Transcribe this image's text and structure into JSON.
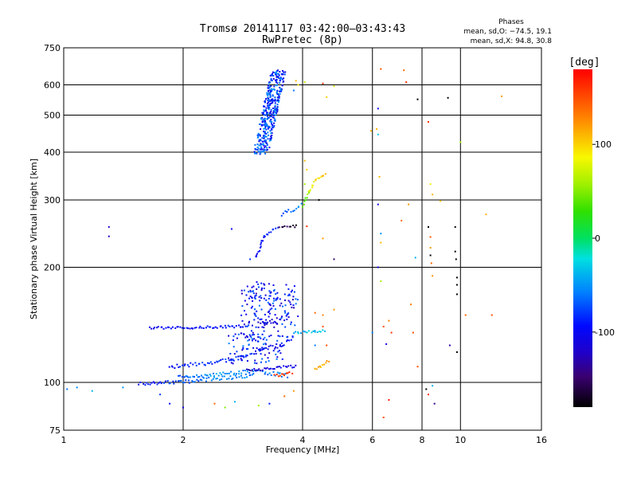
{
  "chart_data": {
    "type": "scatter",
    "title": "Tromsø 20141117 03:42:00–03:43:43",
    "subtitle": "RwPretec (8p)",
    "xlabel": "Frequency [MHz]",
    "ylabel": "Stationary phase Virtual Height [km]",
    "x_scale": "log",
    "y_scale": "log",
    "xlim": [
      1,
      16
    ],
    "ylim": [
      75,
      750
    ],
    "x_ticks": [
      1,
      2,
      4,
      6,
      8,
      10,
      16
    ],
    "x_tick_labels": [
      "1",
      "2",
      "4",
      "6",
      "8",
      "10",
      "16"
    ],
    "y_ticks": [
      75,
      100,
      200,
      300,
      400,
      500,
      600,
      750
    ],
    "y_tick_labels": [
      "75",
      "100",
      "200",
      "300",
      "400",
      "500",
      "600",
      "750"
    ],
    "grid": true,
    "stats": {
      "heading": "Phases",
      "line_o": "mean, sd,O: −74.5, 19.1",
      "line_x": "mean, sd,X:  94.8, 30.8"
    },
    "colorbar": {
      "label": "[deg]",
      "range": [
        -180,
        180
      ],
      "ticks": [
        100,
        0,
        -100
      ],
      "tick_labels": [
        "100",
        "0",
        "-100"
      ]
    },
    "traces": [
      {
        "x": [
          1.55,
          1.7,
          1.9,
          2.1,
          2.35,
          2.6,
          2.85,
          3.05
        ],
        "y": [
          99,
          99.5,
          100,
          101,
          102,
          103,
          104,
          105
        ],
        "phase": [
          -100,
          -90,
          -80,
          -70,
          -60,
          -50,
          -60,
          -70
        ],
        "spread": 2.5
      },
      {
        "x": [
          1.95,
          2.2,
          2.45,
          2.7,
          2.95,
          3.2,
          3.45,
          3.7
        ],
        "y": [
          103,
          104,
          105,
          106,
          107,
          106,
          105,
          104
        ],
        "phase": [
          -70,
          -60,
          -50,
          -55,
          -60,
          -65,
          -60,
          -55
        ],
        "spread": 2.5
      },
      {
        "x": [
          1.85,
          2.05,
          2.3,
          2.55,
          2.8,
          3.0
        ],
        "y": [
          110,
          111,
          112,
          114,
          116,
          118
        ],
        "phase": [
          -95,
          -90,
          -85,
          -80,
          -85,
          -90
        ],
        "spread": 2.5
      },
      {
        "x": [
          1.65,
          1.85,
          2.1,
          2.4,
          2.7,
          2.95
        ],
        "y": [
          139,
          139,
          139,
          139.5,
          140,
          141
        ],
        "phase": [
          -105,
          -100,
          -95,
          -95,
          -90,
          -85
        ],
        "spread": 1.5
      },
      {
        "x": [
          2.9,
          3.1,
          3.3,
          3.5,
          3.7,
          3.9
        ],
        "y": [
          108,
          108,
          109,
          109.5,
          110,
          110
        ],
        "phase": [
          -125,
          -120,
          -115,
          -110,
          -105,
          -100
        ],
        "spread": 1.5
      },
      {
        "x": [
          3.0,
          3.2,
          3.4,
          3.6,
          3.8
        ],
        "y": [
          121,
          122,
          124,
          127,
          130
        ],
        "phase": [
          -110,
          -105,
          -100,
          -95,
          -90
        ],
        "spread": 4
      },
      {
        "x": [
          3.1,
          3.3,
          3.5,
          3.7
        ],
        "y": [
          140,
          143,
          145,
          148
        ],
        "phase": [
          -120,
          -115,
          -110,
          -105
        ],
        "spread": 5
      },
      {
        "x": [
          3.8,
          4.0,
          4.2,
          4.4,
          4.6
        ],
        "y": [
          135,
          135.5,
          136,
          136,
          136.5
        ],
        "phase": [
          -45,
          -40,
          -35,
          -30,
          -25
        ],
        "spread": 1.5
      },
      {
        "x": [
          4.3,
          4.5,
          4.7
        ],
        "y": [
          108,
          111,
          114
        ],
        "phase": [
          110,
          115,
          120
        ],
        "spread": 2
      },
      {
        "x": [
          3.4,
          3.6,
          3.8
        ],
        "y": [
          104,
          105,
          106
        ],
        "phase": [
          150,
          155,
          160
        ],
        "spread": 1.5
      },
      {
        "x": [
          3.05,
          3.2,
          3.35,
          3.5
        ],
        "y": [
          212,
          240,
          250,
          253
        ],
        "phase": [
          -100,
          -95,
          -90,
          -90
        ],
        "spread": 1.5
      },
      {
        "x": [
          3.5,
          3.7,
          3.9
        ],
        "y": [
          256,
          256,
          256
        ],
        "phase": [
          -160,
          -165,
          -170
        ],
        "spread": 1.5
      },
      {
        "x": [
          3.55,
          3.7,
          3.85,
          4.0
        ],
        "y": [
          275,
          280,
          285,
          292
        ],
        "phase": [
          -80,
          -70,
          -60,
          -50
        ],
        "spread": 2.5
      },
      {
        "x": [
          4.0,
          4.1,
          4.2,
          4.3,
          4.45,
          4.6
        ],
        "y": [
          290,
          305,
          320,
          335,
          345,
          350
        ],
        "phase": [
          30,
          50,
          70,
          90,
          100,
          105
        ],
        "spread": 2
      }
    ],
    "clusters": [
      {
        "x_range": [
          3.05,
          3.7
        ],
        "y_range": [
          395,
          655
        ],
        "phase_range": [
          -115,
          -45
        ],
        "count": 380,
        "tilt": 0.55,
        "style": "f2-cusp"
      },
      {
        "x_range": [
          2.8,
          3.9
        ],
        "y_range": [
          130,
          180
        ],
        "phase_range": [
          -130,
          -60
        ],
        "count": 130
      },
      {
        "x_range": [
          2.6,
          3.6
        ],
        "y_range": [
          112,
          135
        ],
        "phase_range": [
          -125,
          -55
        ],
        "count": 90
      },
      {
        "x_range": [
          2.9,
          3.9
        ],
        "y_range": [
          160,
          185
        ],
        "phase_range": [
          -110,
          -70
        ],
        "count": 40
      }
    ],
    "scattered_points": [
      {
        "x": 1.08,
        "y": 97,
        "phase": -55
      },
      {
        "x": 1.02,
        "y": 96,
        "phase": -60
      },
      {
        "x": 1.18,
        "y": 95,
        "phase": -40
      },
      {
        "x": 1.3,
        "y": 255,
        "phase": -115
      },
      {
        "x": 1.3,
        "y": 241,
        "phase": -120
      },
      {
        "x": 1.41,
        "y": 97,
        "phase": -50
      },
      {
        "x": 1.75,
        "y": 93,
        "phase": -80
      },
      {
        "x": 1.85,
        "y": 88,
        "phase": -95
      },
      {
        "x": 2.0,
        "y": 86,
        "phase": -110
      },
      {
        "x": 2.4,
        "y": 88,
        "phase": 140
      },
      {
        "x": 2.55,
        "y": 86,
        "phase": 50
      },
      {
        "x": 2.7,
        "y": 89,
        "phase": -40
      },
      {
        "x": 3.1,
        "y": 87,
        "phase": 60
      },
      {
        "x": 3.3,
        "y": 88,
        "phase": -90
      },
      {
        "x": 3.6,
        "y": 92,
        "phase": 140
      },
      {
        "x": 3.8,
        "y": 95,
        "phase": 120
      },
      {
        "x": 2.65,
        "y": 252,
        "phase": -100
      },
      {
        "x": 2.95,
        "y": 210,
        "phase": -80
      },
      {
        "x": 3.85,
        "y": 615,
        "phase": 110
      },
      {
        "x": 3.9,
        "y": 600,
        "phase": 90
      },
      {
        "x": 3.8,
        "y": 580,
        "phase": -60
      },
      {
        "x": 4.05,
        "y": 610,
        "phase": 70
      },
      {
        "x": 4.5,
        "y": 605,
        "phase": 160
      },
      {
        "x": 4.8,
        "y": 595,
        "phase": 80
      },
      {
        "x": 4.6,
        "y": 557,
        "phase": 100
      },
      {
        "x": 4.05,
        "y": 380,
        "phase": 110
      },
      {
        "x": 4.1,
        "y": 360,
        "phase": 100
      },
      {
        "x": 4.05,
        "y": 330,
        "phase": 60
      },
      {
        "x": 4.4,
        "y": 300,
        "phase": -180
      },
      {
        "x": 4.5,
        "y": 238,
        "phase": 120
      },
      {
        "x": 4.8,
        "y": 210,
        "phase": -150
      },
      {
        "x": 4.1,
        "y": 256,
        "phase": 160
      },
      {
        "x": 4.3,
        "y": 152,
        "phase": 140
      },
      {
        "x": 4.5,
        "y": 150,
        "phase": 130
      },
      {
        "x": 4.5,
        "y": 140,
        "phase": 150
      },
      {
        "x": 4.8,
        "y": 155,
        "phase": 120
      },
      {
        "x": 4.6,
        "y": 125,
        "phase": 150
      },
      {
        "x": 4.3,
        "y": 125,
        "phase": -60
      },
      {
        "x": 5.95,
        "y": 455,
        "phase": 110
      },
      {
        "x": 6.15,
        "y": 460,
        "phase": 110
      },
      {
        "x": 6.2,
        "y": 445,
        "phase": -30
      },
      {
        "x": 6.3,
        "y": 660,
        "phase": 150
      },
      {
        "x": 6.2,
        "y": 520,
        "phase": -100
      },
      {
        "x": 6.25,
        "y": 345,
        "phase": 110
      },
      {
        "x": 6.0,
        "y": 135,
        "phase": -60
      },
      {
        "x": 6.2,
        "y": 292,
        "phase": -110
      },
      {
        "x": 6.3,
        "y": 245,
        "phase": -50
      },
      {
        "x": 6.3,
        "y": 232,
        "phase": 110
      },
      {
        "x": 6.2,
        "y": 200,
        "phase": -110
      },
      {
        "x": 6.3,
        "y": 184,
        "phase": 60
      },
      {
        "x": 6.4,
        "y": 140,
        "phase": 150
      },
      {
        "x": 6.5,
        "y": 126,
        "phase": -110
      },
      {
        "x": 6.6,
        "y": 145,
        "phase": 130
      },
      {
        "x": 6.4,
        "y": 81,
        "phase": 150
      },
      {
        "x": 6.7,
        "y": 135,
        "phase": 160
      },
      {
        "x": 6.6,
        "y": 90,
        "phase": 170
      },
      {
        "x": 7.2,
        "y": 655,
        "phase": 140
      },
      {
        "x": 7.3,
        "y": 610,
        "phase": 160
      },
      {
        "x": 7.1,
        "y": 265,
        "phase": 140
      },
      {
        "x": 7.4,
        "y": 292,
        "phase": 120
      },
      {
        "x": 7.7,
        "y": 212,
        "phase": -40
      },
      {
        "x": 7.8,
        "y": 550,
        "phase": -180
      },
      {
        "x": 7.5,
        "y": 160,
        "phase": 130
      },
      {
        "x": 7.6,
        "y": 135,
        "phase": 150
      },
      {
        "x": 7.8,
        "y": 110,
        "phase": 150
      },
      {
        "x": 8.3,
        "y": 480,
        "phase": 160
      },
      {
        "x": 8.4,
        "y": 330,
        "phase": 80
      },
      {
        "x": 8.5,
        "y": 310,
        "phase": 110
      },
      {
        "x": 8.3,
        "y": 255,
        "phase": -180
      },
      {
        "x": 8.4,
        "y": 240,
        "phase": 150
      },
      {
        "x": 8.4,
        "y": 225,
        "phase": 120
      },
      {
        "x": 8.4,
        "y": 215,
        "phase": -180
      },
      {
        "x": 8.45,
        "y": 205,
        "phase": 140
      },
      {
        "x": 8.5,
        "y": 190,
        "phase": 120
      },
      {
        "x": 8.2,
        "y": 96,
        "phase": -180
      },
      {
        "x": 8.5,
        "y": 98,
        "phase": -40
      },
      {
        "x": 8.3,
        "y": 93,
        "phase": 160
      },
      {
        "x": 8.6,
        "y": 88,
        "phase": -140
      },
      {
        "x": 8.9,
        "y": 298,
        "phase": 100
      },
      {
        "x": 9.3,
        "y": 555,
        "phase": -180
      },
      {
        "x": 9.4,
        "y": 125,
        "phase": -130
      },
      {
        "x": 9.8,
        "y": 120,
        "phase": -180
      },
      {
        "x": 9.7,
        "y": 255,
        "phase": -180
      },
      {
        "x": 9.7,
        "y": 220,
        "phase": -180
      },
      {
        "x": 9.75,
        "y": 210,
        "phase": -180
      },
      {
        "x": 9.8,
        "y": 188,
        "phase": -180
      },
      {
        "x": 9.8,
        "y": 180,
        "phase": -180
      },
      {
        "x": 9.8,
        "y": 170,
        "phase": -180
      },
      {
        "x": 10.0,
        "y": 425,
        "phase": 60
      },
      {
        "x": 10.3,
        "y": 150,
        "phase": 140
      },
      {
        "x": 11.6,
        "y": 275,
        "phase": 110
      },
      {
        "x": 12.7,
        "y": 560,
        "phase": 120
      },
      {
        "x": 12.0,
        "y": 150,
        "phase": 150
      }
    ]
  }
}
